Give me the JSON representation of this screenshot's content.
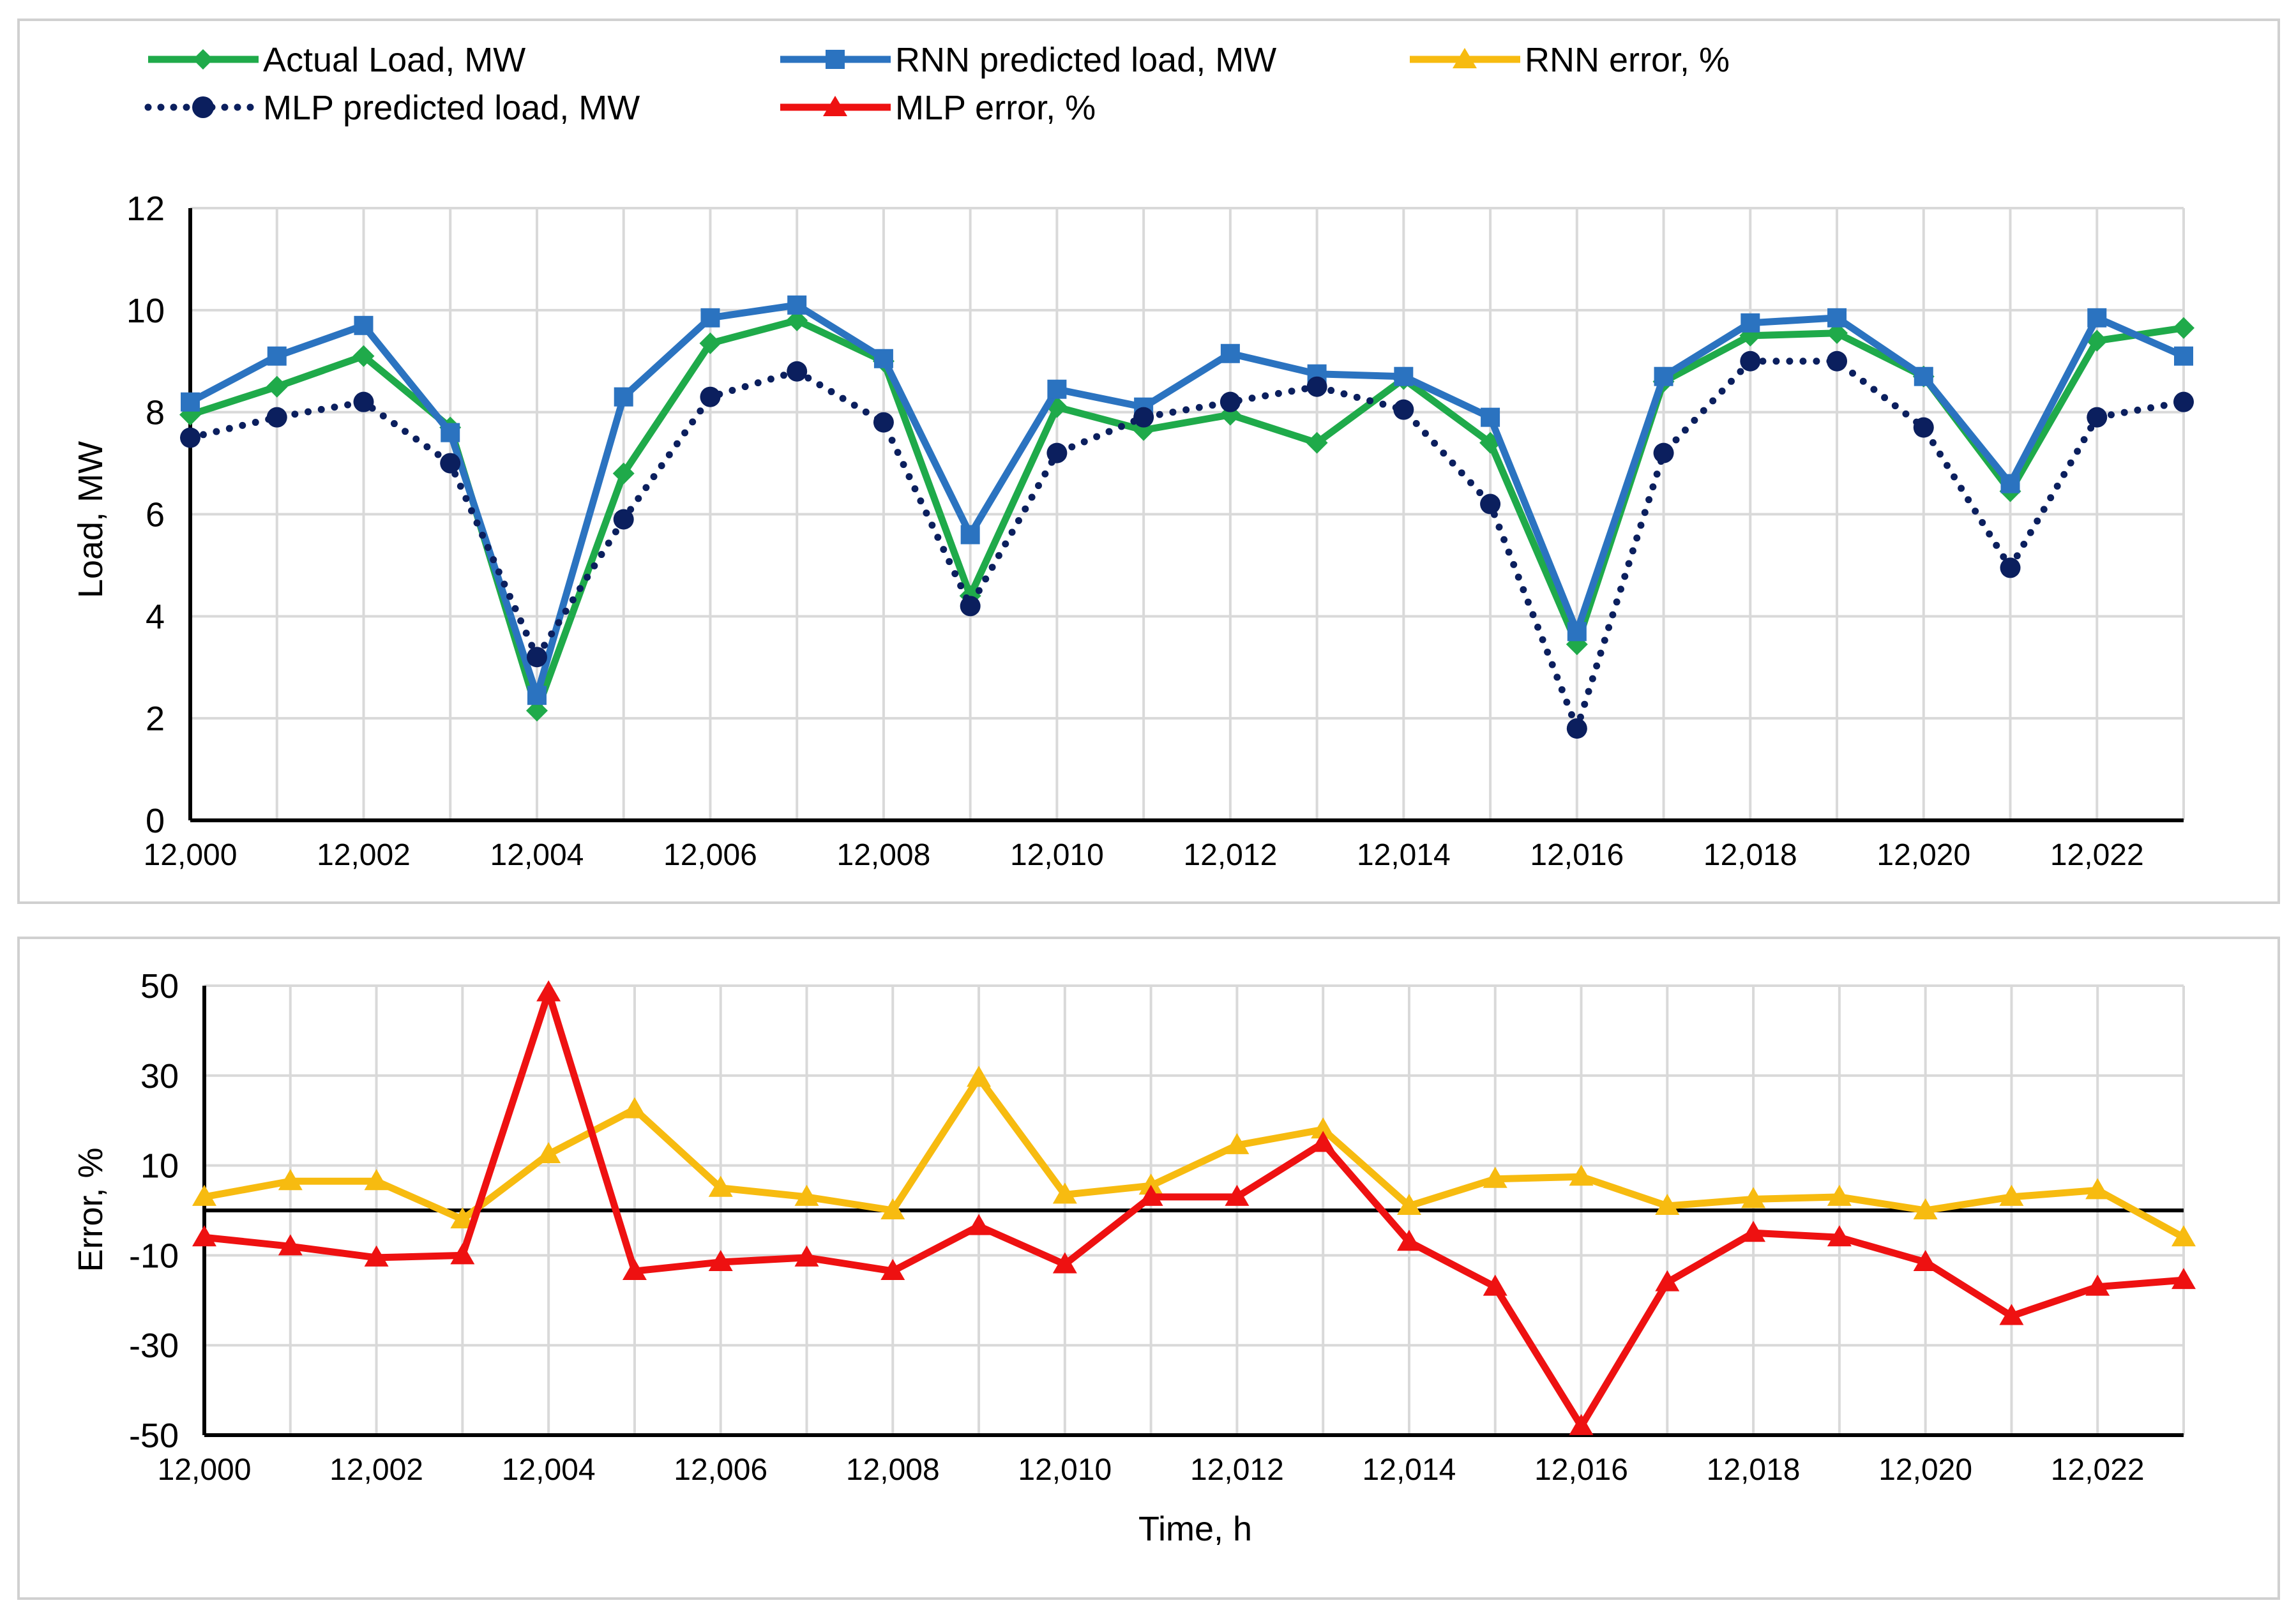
{
  "chart_data": [
    {
      "type": "line",
      "id": "load",
      "title": "",
      "xlabel": "",
      "ylabel": "Load, MW",
      "xlim": [
        12000,
        12023
      ],
      "ylim": [
        0,
        12
      ],
      "x_ticks": [
        "12,000",
        "12,002",
        "12,004",
        "12,006",
        "12,008",
        "12,010",
        "12,012",
        "12,014",
        "12,016",
        "12,018",
        "12,020",
        "12,022"
      ],
      "y_ticks": [
        "0",
        "2",
        "4",
        "6",
        "8",
        "10",
        "12"
      ],
      "grid": true,
      "x": [
        12000,
        12001,
        12002,
        12003,
        12004,
        12005,
        12006,
        12007,
        12008,
        12009,
        12010,
        12011,
        12012,
        12013,
        12014,
        12015,
        12016,
        12017,
        12018,
        12019,
        12020,
        12021,
        12022,
        12023
      ],
      "series": [
        {
          "name": "Actual Load, MW",
          "color": "#1faa4a",
          "marker": "diamond",
          "style": "solid",
          "values": [
            7.95,
            8.5,
            9.1,
            7.7,
            2.15,
            6.8,
            9.35,
            9.8,
            9.0,
            4.4,
            8.1,
            7.65,
            7.95,
            7.4,
            8.65,
            7.4,
            3.45,
            8.6,
            9.5,
            9.55,
            8.7,
            6.45,
            9.4,
            9.65
          ]
        },
        {
          "name": "RNN predicted load, MW",
          "color": "#2b73c0",
          "marker": "square",
          "style": "solid",
          "values": [
            8.2,
            9.1,
            9.7,
            7.6,
            2.45,
            8.3,
            9.85,
            10.1,
            9.05,
            5.6,
            8.45,
            8.1,
            9.15,
            8.75,
            8.7,
            7.9,
            3.7,
            8.7,
            9.75,
            9.85,
            8.7,
            6.6,
            9.85,
            9.1
          ]
        },
        {
          "name": "MLP predicted load, MW",
          "color": "#0b1f5e",
          "marker": "circle",
          "style": "dotted",
          "values": [
            7.5,
            7.9,
            8.2,
            7.0,
            3.2,
            5.9,
            8.3,
            8.8,
            7.8,
            4.2,
            7.2,
            7.9,
            8.2,
            8.5,
            8.05,
            6.2,
            1.8,
            7.2,
            9.0,
            9.0,
            7.7,
            4.95,
            7.9,
            8.2
          ]
        }
      ]
    },
    {
      "type": "line",
      "id": "error",
      "title": "",
      "xlabel": "Time, h",
      "ylabel": "Error, %",
      "xlim": [
        12000,
        12023
      ],
      "ylim": [
        -50,
        50
      ],
      "x_ticks": [
        "12,000",
        "12,002",
        "12,004",
        "12,006",
        "12,008",
        "12,010",
        "12,012",
        "12,014",
        "12,016",
        "12,018",
        "12,020",
        "12,022"
      ],
      "y_ticks": [
        "-50",
        "-30",
        "-10",
        "10",
        "30",
        "50"
      ],
      "grid": true,
      "x": [
        12000,
        12001,
        12002,
        12003,
        12004,
        12005,
        12006,
        12007,
        12008,
        12009,
        12010,
        12011,
        12012,
        12013,
        12014,
        12015,
        12016,
        12017,
        12018,
        12019,
        12020,
        12021,
        12022,
        12023
      ],
      "series": [
        {
          "name": "RNN error, %",
          "color": "#f7bb10",
          "marker": "triangle",
          "style": "solid",
          "values": [
            3,
            6.5,
            6.5,
            -2,
            12.5,
            22.5,
            5,
            3,
            0,
            29.5,
            3.5,
            5.5,
            14.5,
            18,
            1,
            7,
            7.5,
            1,
            2.5,
            3,
            0,
            3,
            4.5,
            -6
          ]
        },
        {
          "name": "MLP error, %",
          "color": "#ee1111",
          "marker": "triangle",
          "style": "solid",
          "values": [
            -6,
            -8,
            -10.5,
            -10,
            48.5,
            -13.5,
            -11.5,
            -10.5,
            -13.5,
            -3.5,
            -12,
            3,
            3,
            15,
            -7,
            -17,
            -48,
            -16,
            -5,
            -6,
            -11.5,
            -23.5,
            -17,
            -15.5
          ]
        }
      ]
    }
  ]
}
